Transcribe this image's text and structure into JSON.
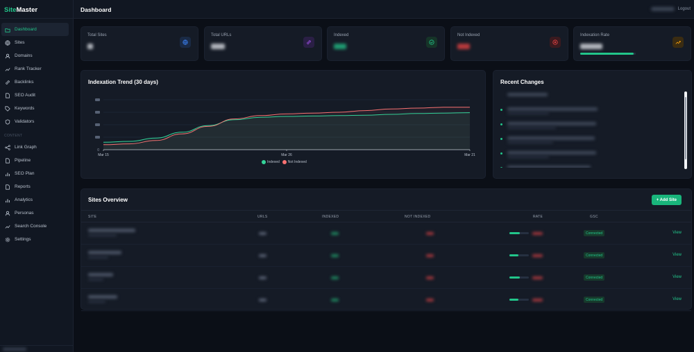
{
  "sidebar": {
    "brand_part1": "Site",
    "brand_part2": "Master",
    "items_main": [
      {
        "label": "Dashboard",
        "icon": "folder-icon",
        "active": true
      },
      {
        "label": "Sites",
        "icon": "globe-icon"
      },
      {
        "label": "Domains",
        "icon": "users-icon"
      },
      {
        "label": "Rank Tracker",
        "icon": "trend-icon"
      },
      {
        "label": "Backlinks",
        "icon": "link-icon"
      },
      {
        "label": "SEO Audit",
        "icon": "document-icon"
      },
      {
        "label": "Keywords",
        "icon": "tag-icon"
      },
      {
        "label": "Validators",
        "icon": "shield-icon"
      }
    ],
    "section_label": "CONTENT",
    "items_content": [
      {
        "label": "Link Graph",
        "icon": "share-icon"
      },
      {
        "label": "Pipeline",
        "icon": "document-icon"
      },
      {
        "label": "SEO Plan",
        "icon": "bar-chart-icon"
      },
      {
        "label": "Reports",
        "icon": "document-icon"
      },
      {
        "label": "Analytics",
        "icon": "bar-chart-icon"
      },
      {
        "label": "Personas",
        "icon": "users-icon"
      },
      {
        "label": "Search Console",
        "icon": "trend-icon"
      },
      {
        "label": "Settings",
        "icon": "gear-icon"
      }
    ]
  },
  "header": {
    "title": "Dashboard",
    "logout_label": "Logout"
  },
  "stats": [
    {
      "label": "Total Sites",
      "icon": "globe-icon",
      "icon_color": "#3b82f6",
      "icon_bg": "#1a2a45",
      "value_color": "#e6e9ef"
    },
    {
      "label": "Total URLs",
      "icon": "link-icon",
      "icon_color": "#a855f7",
      "icon_bg": "#2a1f45",
      "value_color": "#e6e9ef"
    },
    {
      "label": "Indexed",
      "icon": "check-circle-icon",
      "icon_color": "#22c58a",
      "icon_bg": "#163428",
      "value_color": "#22c58a"
    },
    {
      "label": "Not Indexed",
      "icon": "x-circle-icon",
      "icon_color": "#ef4444",
      "icon_bg": "#3a1a1f",
      "value_color": "#ef4444"
    },
    {
      "label": "Indexation Rate",
      "icon": "trend-up-icon",
      "icon_color": "#f59e0b",
      "icon_bg": "#3a2c12",
      "value_color": "#e6e9ef",
      "rate_fraction": 0.96
    }
  ],
  "chart": {
    "title": "Indexation Trend (30 days)",
    "legend": [
      {
        "label": "Indexed",
        "color": "#34d399"
      },
      {
        "label": "Not Indexed",
        "color": "#f87171"
      }
    ]
  },
  "chart_data": {
    "type": "area",
    "x_ticks": [
      "Mar 15",
      "Mar 26",
      "Mar 21"
    ],
    "y_ticks": [
      "0"
    ],
    "series": [
      {
        "name": "Indexed",
        "color": "#34d399",
        "values": [
          0.18,
          0.2,
          0.28,
          0.42,
          0.58,
          0.72,
          0.78,
          0.8,
          0.81,
          0.82,
          0.83,
          0.85,
          0.87,
          0.88,
          0.89
        ]
      },
      {
        "name": "Not Indexed",
        "color": "#f87171",
        "values": [
          0.12,
          0.14,
          0.22,
          0.38,
          0.56,
          0.74,
          0.82,
          0.86,
          0.88,
          0.9,
          0.94,
          0.98,
          1.0,
          1.02,
          1.02
        ]
      }
    ],
    "grid": true
  },
  "recent": {
    "title": "Recent Changes"
  },
  "sites": {
    "title": "Sites Overview",
    "add_label": "+ Add Site",
    "columns": [
      "SITE",
      "URLS",
      "INDEXED",
      "NOT INDEXED",
      "RATE",
      "GSC"
    ],
    "rows": [
      {
        "rate_fraction": 0.55,
        "gsc": "Connected",
        "view": "View"
      },
      {
        "rate_fraction": 0.45,
        "gsc": "Connected",
        "view": "View"
      },
      {
        "rate_fraction": 0.55,
        "gsc": "Connected",
        "view": "View"
      },
      {
        "rate_fraction": 0.45,
        "gsc": "Connected",
        "view": "View"
      }
    ]
  }
}
